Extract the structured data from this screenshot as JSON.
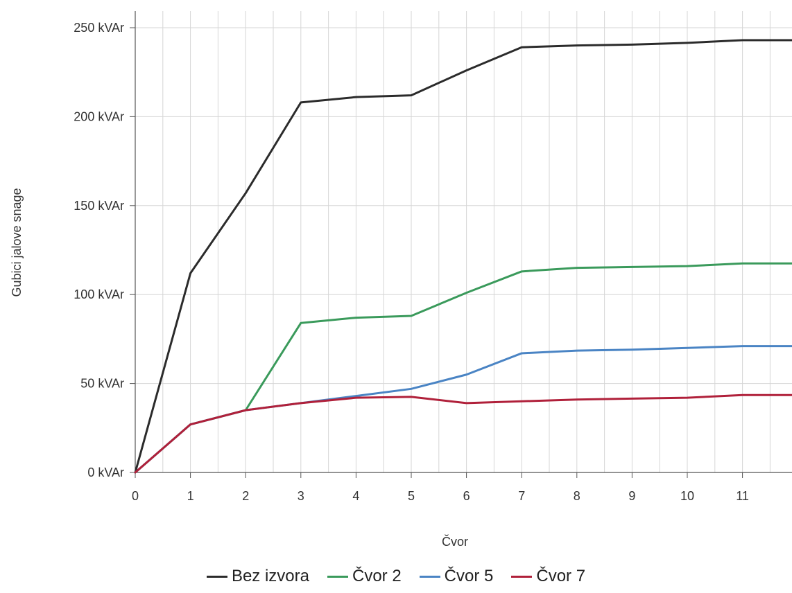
{
  "chart_data": {
    "type": "line",
    "title": "",
    "xlabel": "Čvor",
    "ylabel": "Gubici jalove snage",
    "x": [
      0,
      1,
      2,
      3,
      4,
      5,
      6,
      7,
      8,
      9,
      10,
      11,
      12
    ],
    "x_tick_labels": [
      "0",
      "1",
      "2",
      "3",
      "4",
      "5",
      "6",
      "7",
      "8",
      "9",
      "10",
      "11"
    ],
    "xlim": [
      0,
      11.6
    ],
    "y_tick_labels": [
      "0 kVAr",
      "50 kVAr",
      "100 kVAr",
      "150 kVAr",
      "200 kVAr",
      "250 kVAr"
    ],
    "y_ticks": [
      0,
      50,
      100,
      150,
      200,
      250
    ],
    "ylim": [
      0,
      250
    ],
    "grid": true,
    "legend_position": "bottom",
    "series": [
      {
        "name": "Bez izvora",
        "color": "#2b2b2b",
        "values": [
          0,
          112,
          157,
          208,
          211,
          212,
          226,
          239,
          240,
          240.5,
          241.5,
          243,
          243
        ]
      },
      {
        "name": "Čvor 2",
        "color": "#3a9a5b",
        "values": [
          0,
          27,
          35,
          84,
          87,
          88,
          101,
          113,
          115,
          115.5,
          116,
          117.5,
          117.5
        ]
      },
      {
        "name": "Čvor 5",
        "color": "#4a84c4",
        "values": [
          0,
          27,
          35,
          39,
          43,
          47,
          55,
          67,
          68.5,
          69,
          70,
          71,
          71
        ]
      },
      {
        "name": "Čvor 7",
        "color": "#b0203a",
        "values": [
          0,
          27,
          35,
          39,
          42,
          42.5,
          39,
          40,
          41,
          41.5,
          42,
          43.5,
          43.5
        ]
      }
    ]
  }
}
